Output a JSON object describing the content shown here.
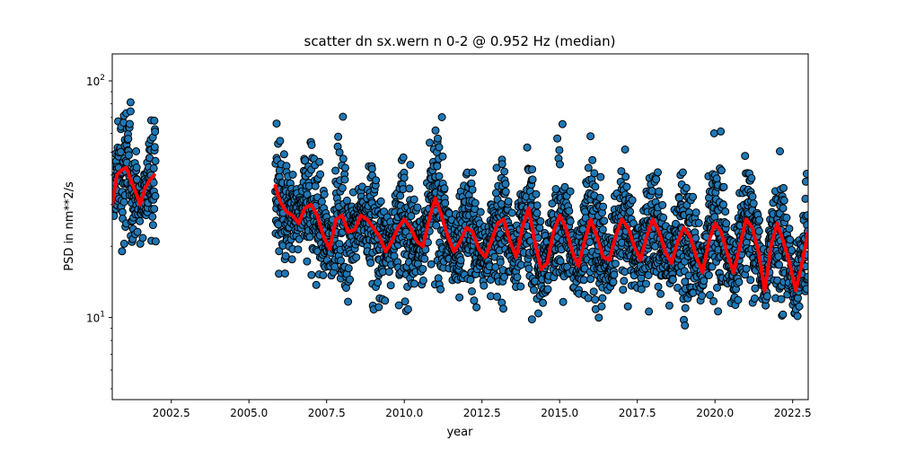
{
  "chart_data": {
    "type": "scatter",
    "title": "scatter dn sx.wern n 0-2 @ 0.952 Hz (median)",
    "xlabel": "year",
    "ylabel": "PSD in nm**2/s",
    "xlim": [
      2000.6,
      2023.0
    ],
    "ylim": [
      4.5,
      130
    ],
    "yscale": "log",
    "grid": false,
    "x_ticks": [
      2002.5,
      2005.0,
      2007.5,
      2010.0,
      2012.5,
      2015.0,
      2017.5,
      2020.0,
      2022.5
    ],
    "x_tick_labels": [
      "2002.5",
      "2005.0",
      "2007.5",
      "2010.0",
      "2012.5",
      "2015.0",
      "2017.5",
      "2020.0",
      "2022.5"
    ],
    "y_ticks": [
      {
        "value": 10,
        "base": "10",
        "exp": "1"
      },
      {
        "value": 100,
        "base": "10",
        "exp": "2"
      }
    ],
    "y_minor_ticks": [
      5,
      6,
      7,
      8,
      9,
      20,
      30,
      40,
      50,
      60,
      70,
      80,
      90
    ],
    "data_gap": [
      2002.0,
      2005.85
    ],
    "series": [
      {
        "marker": "circle",
        "color": "#1f77b4",
        "edgecolor": "#000000",
        "segments": [
          [
            2000.6,
            2002.0
          ],
          [
            2005.85,
            2023.0
          ]
        ]
      },
      {
        "style": "line",
        "color": "#ff0000",
        "x": [
          2000.6,
          2000.75,
          2000.9,
          2001.05,
          2001.2,
          2001.35,
          2001.5,
          2001.65,
          2001.8,
          2001.95,
          2005.85,
          2006.0,
          2006.2,
          2006.4,
          2006.6,
          2006.8,
          2007.0,
          2007.2,
          2007.4,
          2007.6,
          2007.8,
          2008.0,
          2008.2,
          2008.4,
          2008.6,
          2008.8,
          2009.0,
          2009.2,
          2009.4,
          2009.6,
          2009.8,
          2010.0,
          2010.2,
          2010.4,
          2010.6,
          2010.8,
          2011.0,
          2011.2,
          2011.4,
          2011.6,
          2011.8,
          2012.0,
          2012.2,
          2012.4,
          2012.6,
          2012.8,
          2013.0,
          2013.2,
          2013.4,
          2013.6,
          2013.8,
          2014.0,
          2014.2,
          2014.4,
          2014.6,
          2014.8,
          2015.0,
          2015.2,
          2015.4,
          2015.6,
          2015.8,
          2016.0,
          2016.2,
          2016.4,
          2016.6,
          2016.8,
          2017.0,
          2017.2,
          2017.4,
          2017.6,
          2017.8,
          2018.0,
          2018.2,
          2018.4,
          2018.6,
          2018.8,
          2019.0,
          2019.2,
          2019.4,
          2019.6,
          2019.8,
          2020.0,
          2020.2,
          2020.4,
          2020.6,
          2020.8,
          2021.0,
          2021.2,
          2021.4,
          2021.6,
          2021.8,
          2022.0,
          2022.2,
          2022.4,
          2022.6,
          2022.8,
          2023.0
        ],
        "y": [
          30,
          40,
          42,
          43,
          38,
          34,
          30,
          35,
          38,
          40,
          36,
          31,
          28,
          27,
          25,
          29,
          30,
          27,
          22,
          19.5,
          26,
          27,
          23,
          23.5,
          27,
          26,
          24,
          22,
          19,
          21,
          24,
          26,
          24,
          21,
          20,
          26,
          32,
          27,
          22,
          19,
          21,
          24,
          23,
          19.5,
          18,
          21,
          25,
          26,
          21,
          18,
          24,
          29,
          21,
          16,
          17,
          23,
          27,
          24,
          19,
          16.5,
          21,
          26,
          22,
          18,
          17.5,
          22,
          26,
          24,
          20,
          17.5,
          22,
          26,
          23,
          19,
          17,
          21,
          24,
          22,
          18,
          15.5,
          21,
          25,
          23,
          18.5,
          15.5,
          20,
          26,
          24,
          19,
          13,
          20,
          25,
          21,
          17,
          13,
          17,
          23
        ]
      }
    ]
  }
}
